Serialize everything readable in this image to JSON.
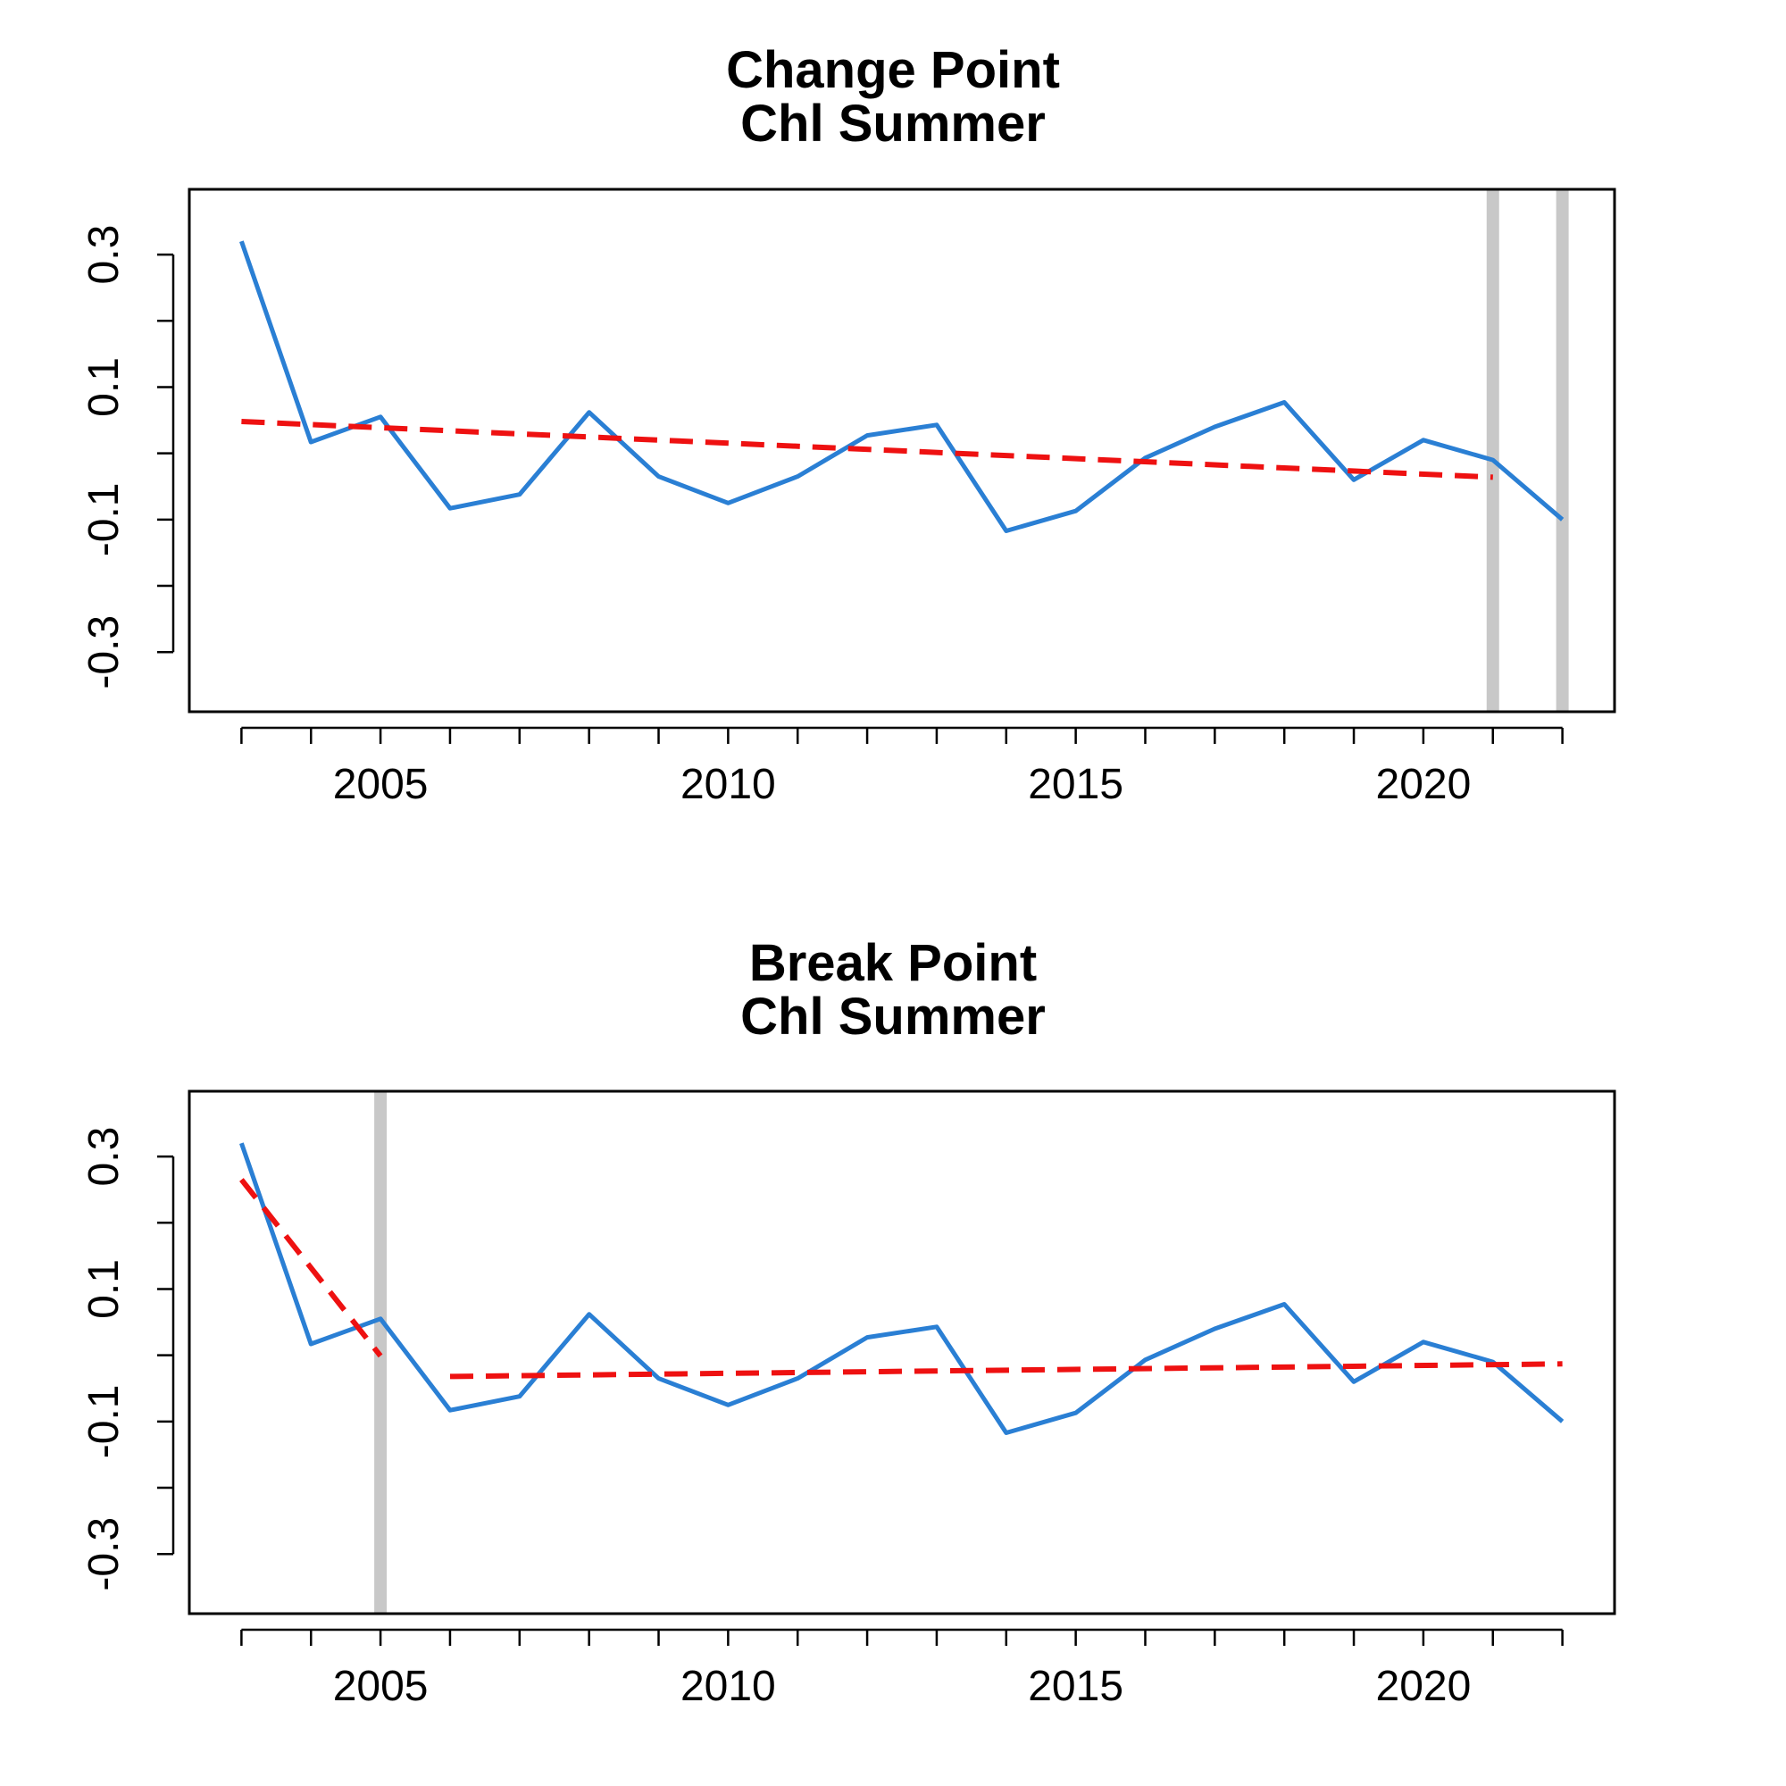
{
  "chart_data": [
    {
      "type": "line",
      "title": [
        "Change Point",
        "Chl Summer"
      ],
      "xlabel": "",
      "ylabel": "",
      "xlim": [
        2002.25,
        2022.75
      ],
      "ylim": [
        -0.39,
        0.3985
      ],
      "xticks": [
        2003,
        2004,
        2005,
        2006,
        2007,
        2008,
        2009,
        2010,
        2011,
        2012,
        2013,
        2014,
        2015,
        2016,
        2017,
        2018,
        2019,
        2020,
        2021,
        2022
      ],
      "xtick_labels": [
        {
          "x": 2005,
          "label": "2005"
        },
        {
          "x": 2010,
          "label": "2010"
        },
        {
          "x": 2015,
          "label": "2015"
        },
        {
          "x": 2020,
          "label": "2020"
        }
      ],
      "yticks": [
        -0.3,
        -0.2,
        -0.1,
        0.0,
        0.1,
        0.2,
        0.3
      ],
      "ytick_labels": [
        {
          "y": 0.3,
          "label": "0.3"
        },
        {
          "y": 0.1,
          "label": "0.1"
        },
        {
          "y": -0.1,
          "label": "-0.1"
        },
        {
          "y": -0.3,
          "label": "-0.3"
        }
      ],
      "grid": false,
      "series": [
        {
          "style": "solid",
          "color": "#2a7fd4",
          "x": [
            2003,
            2004,
            2005,
            2006,
            2007,
            2008,
            2009,
            2010,
            2011,
            2012,
            2013,
            2014,
            2015,
            2016,
            2017,
            2018,
            2019,
            2020,
            2021,
            2022
          ],
          "y": [
            0.32,
            0.017,
            0.055,
            -0.083,
            -0.062,
            0.062,
            -0.035,
            -0.075,
            -0.035,
            0.027,
            0.043,
            -0.117,
            -0.087,
            -0.007,
            0.04,
            0.077,
            -0.04,
            0.02,
            -0.01,
            -0.1
          ]
        },
        {
          "style": "dashed",
          "color": "#ee1111",
          "x": [
            2003,
            2021
          ],
          "y": [
            0.048,
            -0.036
          ]
        }
      ],
      "vlines": {
        "color": "#c8c8c8",
        "x": [
          2021,
          2022
        ]
      }
    },
    {
      "type": "line",
      "title": [
        "Break Point",
        "Chl Summer"
      ],
      "xlabel": "",
      "ylabel": "",
      "xlim": [
        2002.25,
        2022.75
      ],
      "ylim": [
        -0.39,
        0.3985
      ],
      "xticks": [
        2003,
        2004,
        2005,
        2006,
        2007,
        2008,
        2009,
        2010,
        2011,
        2012,
        2013,
        2014,
        2015,
        2016,
        2017,
        2018,
        2019,
        2020,
        2021,
        2022
      ],
      "xtick_labels": [
        {
          "x": 2005,
          "label": "2005"
        },
        {
          "x": 2010,
          "label": "2010"
        },
        {
          "x": 2015,
          "label": "2015"
        },
        {
          "x": 2020,
          "label": "2020"
        }
      ],
      "yticks": [
        -0.3,
        -0.2,
        -0.1,
        0.0,
        0.1,
        0.2,
        0.3
      ],
      "ytick_labels": [
        {
          "y": 0.3,
          "label": "0.3"
        },
        {
          "y": 0.1,
          "label": "0.1"
        },
        {
          "y": -0.1,
          "label": "-0.1"
        },
        {
          "y": -0.3,
          "label": "-0.3"
        }
      ],
      "grid": false,
      "series": [
        {
          "style": "solid",
          "color": "#2a7fd4",
          "x": [
            2003,
            2004,
            2005,
            2006,
            2007,
            2008,
            2009,
            2010,
            2011,
            2012,
            2013,
            2014,
            2015,
            2016,
            2017,
            2018,
            2019,
            2020,
            2021,
            2022
          ],
          "y": [
            0.32,
            0.017,
            0.055,
            -0.083,
            -0.062,
            0.062,
            -0.035,
            -0.075,
            -0.035,
            0.027,
            0.043,
            -0.117,
            -0.087,
            -0.007,
            0.04,
            0.077,
            -0.04,
            0.02,
            -0.01,
            -0.1
          ]
        },
        {
          "style": "dashed",
          "color": "#ee1111",
          "x": [
            2003,
            2005
          ],
          "y": [
            0.265,
            -0.001
          ]
        },
        {
          "style": "dashed",
          "color": "#ee1111",
          "x": [
            2006,
            2022
          ],
          "y": [
            -0.032,
            -0.013
          ]
        }
      ],
      "vlines": {
        "color": "#c8c8c8",
        "x": [
          2005
        ]
      }
    }
  ]
}
